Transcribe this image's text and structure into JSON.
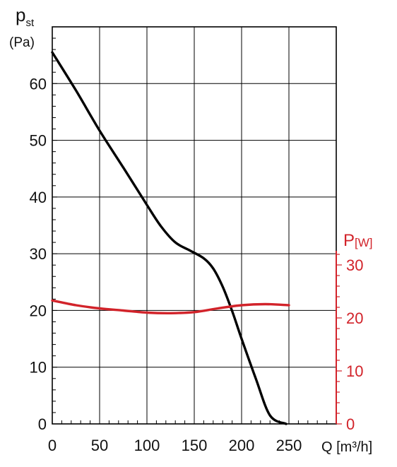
{
  "chart_data": {
    "type": "line",
    "x_axis": {
      "label": "Q [m³/h]",
      "range": [
        0,
        300
      ],
      "ticks": [
        0,
        50,
        100,
        150,
        200,
        250
      ],
      "tick_labels": [
        "0",
        "50",
        "100",
        "150",
        "200",
        "250"
      ],
      "minor_step": 10
    },
    "y_axis_left": {
      "label_main": "p",
      "label_sub": "st",
      "unit": "(Pa)",
      "range": [
        0,
        70
      ],
      "ticks": [
        0,
        10,
        20,
        30,
        40,
        50,
        60
      ],
      "tick_labels": [
        "0",
        "10",
        "20",
        "30",
        "40",
        "50",
        "60"
      ],
      "minor_step": 2
    },
    "y_axis_right": {
      "label_main": "P",
      "label_sub": "[W]",
      "range": [
        0,
        30
      ],
      "ticks": [
        0,
        10,
        20,
        30
      ],
      "tick_labels": [
        "0",
        "10",
        "20",
        "30"
      ],
      "minor_step": 2,
      "color": "#d2232a"
    },
    "grid": true,
    "series": [
      {
        "axis": "left",
        "color": "#000000",
        "x": [
          0,
          25,
          50,
          75,
          100,
          115,
          130,
          145,
          160,
          170,
          180,
          190,
          200,
          215,
          230,
          247
        ],
        "y": [
          65.5,
          58.8,
          51.7,
          45.2,
          38.6,
          34.8,
          32.0,
          30.6,
          29.2,
          27.4,
          24.2,
          19.9,
          15.0,
          8.0,
          1.5,
          0
        ]
      },
      {
        "axis": "right",
        "color": "#d2232a",
        "x": [
          0,
          25,
          50,
          75,
          100,
          125,
          150,
          175,
          200,
          225,
          250
        ],
        "y": [
          23.3,
          22.4,
          21.8,
          21.4,
          21.0,
          20.9,
          21.1,
          21.8,
          22.4,
          22.6,
          22.4
        ]
      }
    ]
  }
}
